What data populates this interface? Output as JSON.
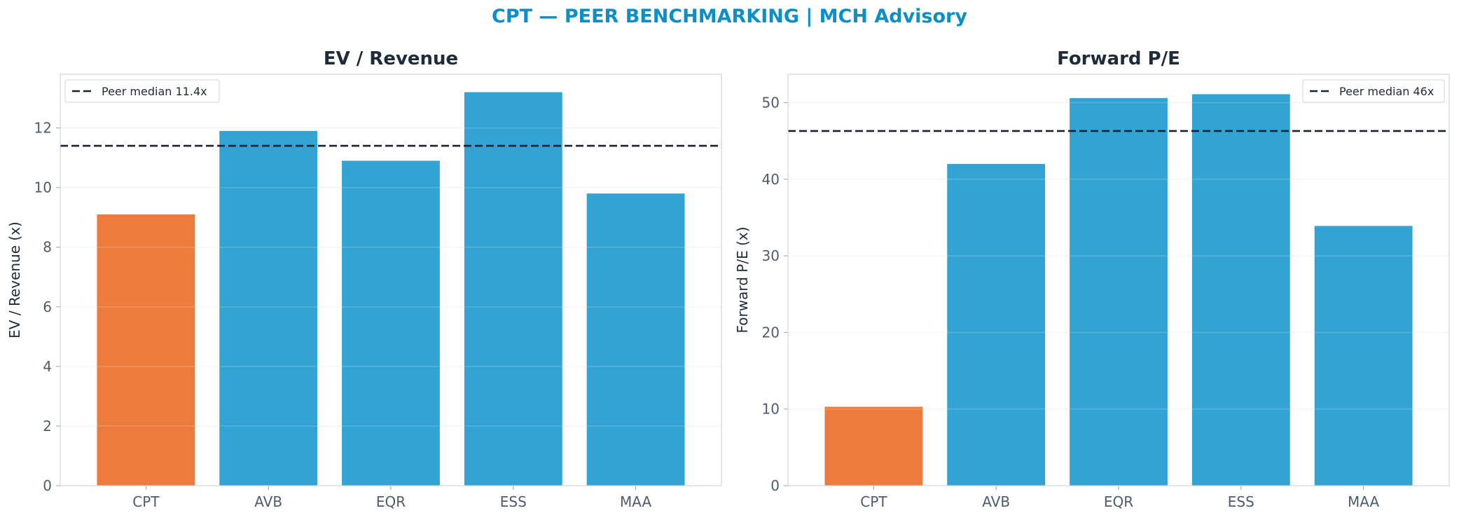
{
  "suptitle": "CPT — PEER BENCHMARKING | MCH Advisory",
  "colors": {
    "highlight": "#ed7b3e",
    "peer": "#33a3d4",
    "median": "#1a2130",
    "title": "#0a8fc8"
  },
  "chart_data": [
    {
      "type": "bar",
      "title": "EV / Revenue",
      "xlabel": "",
      "ylabel": "EV / Revenue (x)",
      "categories": [
        "CPT",
        "AVB",
        "EQR",
        "ESS",
        "MAA"
      ],
      "values": [
        9.1,
        11.9,
        10.9,
        13.2,
        9.8
      ],
      "highlight": "CPT",
      "median": 11.4,
      "median_label": "Peer median 11.4x",
      "ylim": [
        0,
        13.8
      ],
      "yticks": [
        0,
        2,
        4,
        6,
        8,
        10,
        12
      ],
      "grid": true,
      "legend": "top-left"
    },
    {
      "type": "bar",
      "title": "Forward P/E",
      "xlabel": "",
      "ylabel": "Forward P/E (x)",
      "categories": [
        "CPT",
        "AVB",
        "EQR",
        "ESS",
        "MAA"
      ],
      "values": [
        10.3,
        42.0,
        50.6,
        51.1,
        33.9
      ],
      "highlight": "CPT",
      "median": 46.3,
      "median_label": "Peer median 46x",
      "ylim": [
        0,
        53.7
      ],
      "yticks": [
        0,
        10,
        20,
        30,
        40,
        50
      ],
      "grid": true,
      "legend": "top-right"
    }
  ]
}
